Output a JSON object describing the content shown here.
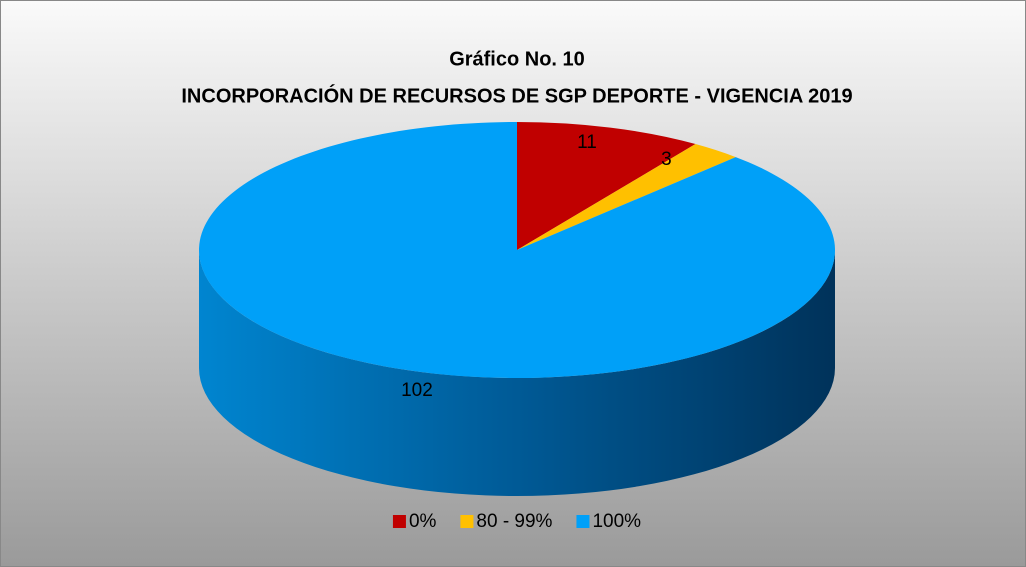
{
  "chart_data": {
    "type": "pie3d",
    "title": "Gráfico No. 10",
    "subtitle": "INCORPORACIÓN DE RECURSOS DE SGP DEPORTE - VIGENCIA 2019",
    "categories": [
      "0%",
      "80 - 99%",
      "100%"
    ],
    "values": [
      11,
      3,
      102
    ],
    "colors": [
      "#c00000",
      "#ffc000",
      "#00a0f8"
    ],
    "legend": "bottom"
  }
}
